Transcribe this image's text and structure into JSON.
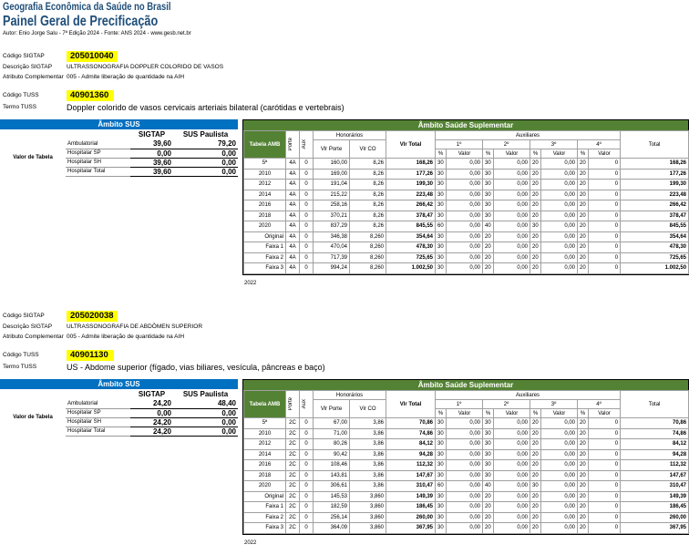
{
  "header": {
    "line1": "Geografia Econômica da Saúde no Brasil",
    "line2": "Painel Geral de Precificação",
    "line3": "Autor: Enio Jorge Salu - 7ª Edição 2024 - Fonte: ANS 2024 - www.gesb.net.br"
  },
  "labels": {
    "codigo_sigtap": "Código SIGTAP",
    "descricao_sigtap": "Descrição SIGTAP",
    "atributo": "Atributo Complementar",
    "codigo_tuss": "Código TUSS",
    "termo_tuss": "Termo TUSS",
    "ambito_sus": "Âmbito SUS",
    "ambito_ss": "Âmbito Saúde Suplementar",
    "sigtap": "SIGTAP",
    "sus_paulista": "SUS Paulista",
    "valor_tabela": "Valor de Tabela",
    "tabela_amb": "Tabela AMB",
    "porte": "Porte",
    "aux": "Aux",
    "honorarios": "Honorários",
    "auxiliares": "Auxiliares",
    "total": "Total",
    "vlr_porte": "Vlr Porte",
    "vlr_co": "Vlr CO",
    "vlr_total": "Vlr Total",
    "pct": "%",
    "valor": "Valor",
    "aux1": "1º",
    "aux2": "2º",
    "aux3": "3º",
    "aux4": "4º",
    "year_2022": "2022"
  },
  "blocks": [
    {
      "codigo_sigtap": "205010040",
      "descricao_sigtap": "ULTRASSONOGRAFIA DOPPLER COLORIDO DE VASOS",
      "atributo": "005 - Admite liberação de quantidade na AIH",
      "codigo_tuss": "40901360",
      "termo_tuss": "Doppler colorido de vasos cervicais arteriais bilateral (carótidas e vertebrais)",
      "sus_rows": [
        {
          "label": "Ambulatorial",
          "sigtap": "39,60",
          "paulista": "79,20"
        },
        {
          "label": "Hospitalar SP",
          "sigtap": "0,00",
          "paulista": "0,00"
        },
        {
          "label": "Hospitalar SH",
          "sigtap": "39,60",
          "paulista": "0,00"
        },
        {
          "label": "Hospitalar Total",
          "sigtap": "39,60",
          "paulista": "0,00"
        }
      ],
      "ss_rows": [
        {
          "amb": "5ª",
          "porte": "4A",
          "aux": "0",
          "vp": "160,00",
          "co": "8,26",
          "vt": "168,26",
          "p1": "30",
          "v1": "0,00",
          "p2": "30",
          "v2": "0,00",
          "p3": "20",
          "v3": "0,00",
          "p4": "20",
          "v4": "0",
          "tot": "168,26"
        },
        {
          "amb": "2010",
          "porte": "4A",
          "aux": "0",
          "vp": "169,00",
          "co": "8,26",
          "vt": "177,26",
          "p1": "30",
          "v1": "0,00",
          "p2": "30",
          "v2": "0,00",
          "p3": "20",
          "v3": "0,00",
          "p4": "20",
          "v4": "0",
          "tot": "177,26"
        },
        {
          "amb": "2012",
          "porte": "4A",
          "aux": "0",
          "vp": "191,04",
          "co": "8,26",
          "vt": "199,30",
          "p1": "30",
          "v1": "0,00",
          "p2": "30",
          "v2": "0,00",
          "p3": "20",
          "v3": "0,00",
          "p4": "20",
          "v4": "0",
          "tot": "199,30"
        },
        {
          "amb": "2014",
          "porte": "4A",
          "aux": "0",
          "vp": "215,22",
          "co": "8,26",
          "vt": "223,48",
          "p1": "30",
          "v1": "0,00",
          "p2": "30",
          "v2": "0,00",
          "p3": "20",
          "v3": "0,00",
          "p4": "20",
          "v4": "0",
          "tot": "223,48"
        },
        {
          "amb": "2016",
          "porte": "4A",
          "aux": "0",
          "vp": "258,16",
          "co": "8,26",
          "vt": "266,42",
          "p1": "30",
          "v1": "0,00",
          "p2": "30",
          "v2": "0,00",
          "p3": "20",
          "v3": "0,00",
          "p4": "20",
          "v4": "0",
          "tot": "266,42"
        },
        {
          "amb": "2018",
          "porte": "4A",
          "aux": "0",
          "vp": "370,21",
          "co": "8,26",
          "vt": "378,47",
          "p1": "30",
          "v1": "0,00",
          "p2": "30",
          "v2": "0,00",
          "p3": "20",
          "v3": "0,00",
          "p4": "20",
          "v4": "0",
          "tot": "378,47"
        },
        {
          "amb": "2020",
          "porte": "4A",
          "aux": "0",
          "vp": "837,29",
          "co": "8,26",
          "vt": "845,55",
          "p1": "60",
          "v1": "0,00",
          "p2": "40",
          "v2": "0,00",
          "p3": "30",
          "v3": "0,00",
          "p4": "20",
          "v4": "0",
          "tot": "845,55"
        },
        {
          "amb": "Original",
          "porte": "4A",
          "aux": "0",
          "vp": "346,38",
          "co": "8,260",
          "vt": "354,64",
          "p1": "30",
          "v1": "0,00",
          "p2": "20",
          "v2": "0,00",
          "p3": "20",
          "v3": "0,00",
          "p4": "20",
          "v4": "0",
          "tot": "354,64"
        },
        {
          "amb": "Faixa 1",
          "porte": "4A",
          "aux": "0",
          "vp": "470,04",
          "co": "8,260",
          "vt": "478,30",
          "p1": "30",
          "v1": "0,00",
          "p2": "20",
          "v2": "0,00",
          "p3": "20",
          "v3": "0,00",
          "p4": "20",
          "v4": "0",
          "tot": "478,30"
        },
        {
          "amb": "Faixa 2",
          "porte": "4A",
          "aux": "0",
          "vp": "717,39",
          "co": "8,260",
          "vt": "725,65",
          "p1": "30",
          "v1": "0,00",
          "p2": "20",
          "v2": "0,00",
          "p3": "20",
          "v3": "0,00",
          "p4": "20",
          "v4": "0",
          "tot": "725,65"
        },
        {
          "amb": "Faixa 3",
          "porte": "4A",
          "aux": "0",
          "vp": "994,24",
          "co": "8,260",
          "vt": "1.002,50",
          "p1": "30",
          "v1": "0,00",
          "p2": "20",
          "v2": "0,00",
          "p3": "20",
          "v3": "0,00",
          "p4": "20",
          "v4": "0",
          "tot": "1.002,50"
        }
      ]
    },
    {
      "codigo_sigtap": "205020038",
      "descricao_sigtap": "ULTRASSONOGRAFIA DE ABDÔMEN SUPERIOR",
      "atributo": "005 - Admite liberação de quantidade na AIH",
      "codigo_tuss": "40901130",
      "termo_tuss": "US - Abdome superior (fígado, vias biliares, vesícula, pâncreas e baço)",
      "sus_rows": [
        {
          "label": "Ambulatorial",
          "sigtap": "24,20",
          "paulista": "48,40"
        },
        {
          "label": "Hospitalar SP",
          "sigtap": "0,00",
          "paulista": "0,00"
        },
        {
          "label": "Hospitalar SH",
          "sigtap": "24,20",
          "paulista": "0,00"
        },
        {
          "label": "Hospitalar Total",
          "sigtap": "24,20",
          "paulista": "0,00"
        }
      ],
      "ss_rows": [
        {
          "amb": "5ª",
          "porte": "2C",
          "aux": "0",
          "vp": "67,00",
          "co": "3,86",
          "vt": "70,86",
          "p1": "30",
          "v1": "0,00",
          "p2": "30",
          "v2": "0,00",
          "p3": "20",
          "v3": "0,00",
          "p4": "20",
          "v4": "0",
          "tot": "70,86"
        },
        {
          "amb": "2010",
          "porte": "2C",
          "aux": "0",
          "vp": "71,00",
          "co": "3,86",
          "vt": "74,86",
          "p1": "30",
          "v1": "0,00",
          "p2": "30",
          "v2": "0,00",
          "p3": "20",
          "v3": "0,00",
          "p4": "20",
          "v4": "0",
          "tot": "74,86"
        },
        {
          "amb": "2012",
          "porte": "2C",
          "aux": "0",
          "vp": "80,26",
          "co": "3,86",
          "vt": "84,12",
          "p1": "30",
          "v1": "0,00",
          "p2": "30",
          "v2": "0,00",
          "p3": "20",
          "v3": "0,00",
          "p4": "20",
          "v4": "0",
          "tot": "84,12"
        },
        {
          "amb": "2014",
          "porte": "2C",
          "aux": "0",
          "vp": "90,42",
          "co": "3,86",
          "vt": "94,28",
          "p1": "30",
          "v1": "0,00",
          "p2": "30",
          "v2": "0,00",
          "p3": "20",
          "v3": "0,00",
          "p4": "20",
          "v4": "0",
          "tot": "94,28"
        },
        {
          "amb": "2016",
          "porte": "2C",
          "aux": "0",
          "vp": "108,46",
          "co": "3,86",
          "vt": "112,32",
          "p1": "30",
          "v1": "0,00",
          "p2": "30",
          "v2": "0,00",
          "p3": "20",
          "v3": "0,00",
          "p4": "20",
          "v4": "0",
          "tot": "112,32"
        },
        {
          "amb": "2018",
          "porte": "2C",
          "aux": "0",
          "vp": "143,81",
          "co": "3,86",
          "vt": "147,67",
          "p1": "30",
          "v1": "0,00",
          "p2": "30",
          "v2": "0,00",
          "p3": "20",
          "v3": "0,00",
          "p4": "20",
          "v4": "0",
          "tot": "147,67"
        },
        {
          "amb": "2020",
          "porte": "2C",
          "aux": "0",
          "vp": "306,61",
          "co": "3,86",
          "vt": "310,47",
          "p1": "60",
          "v1": "0,00",
          "p2": "40",
          "v2": "0,00",
          "p3": "30",
          "v3": "0,00",
          "p4": "20",
          "v4": "0",
          "tot": "310,47"
        },
        {
          "amb": "Original",
          "porte": "2C",
          "aux": "0",
          "vp": "145,53",
          "co": "3,860",
          "vt": "149,39",
          "p1": "30",
          "v1": "0,00",
          "p2": "20",
          "v2": "0,00",
          "p3": "20",
          "v3": "0,00",
          "p4": "20",
          "v4": "0",
          "tot": "149,39"
        },
        {
          "amb": "Faixa 1",
          "porte": "2C",
          "aux": "0",
          "vp": "182,59",
          "co": "3,860",
          "vt": "186,45",
          "p1": "30",
          "v1": "0,00",
          "p2": "20",
          "v2": "0,00",
          "p3": "20",
          "v3": "0,00",
          "p4": "20",
          "v4": "0",
          "tot": "186,45"
        },
        {
          "amb": "Faixa 2",
          "porte": "2C",
          "aux": "0",
          "vp": "256,14",
          "co": "3,860",
          "vt": "260,00",
          "p1": "30",
          "v1": "0,00",
          "p2": "20",
          "v2": "0,00",
          "p3": "20",
          "v3": "0,00",
          "p4": "20",
          "v4": "0",
          "tot": "260,00"
        },
        {
          "amb": "Faixa 3",
          "porte": "2C",
          "aux": "0",
          "vp": "364,09",
          "co": "3,860",
          "vt": "367,95",
          "p1": "30",
          "v1": "0,00",
          "p2": "20",
          "v2": "0,00",
          "p3": "20",
          "v3": "0,00",
          "p4": "20",
          "v4": "0",
          "tot": "367,95"
        }
      ]
    }
  ]
}
